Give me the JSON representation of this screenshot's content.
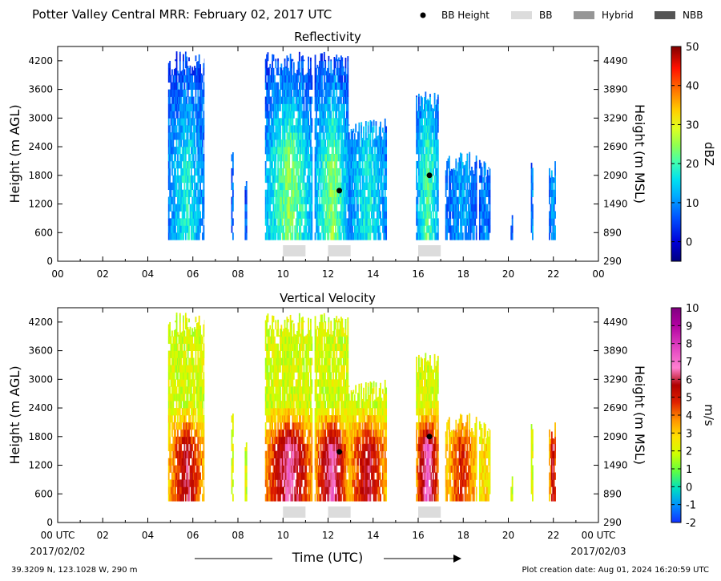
{
  "header": {
    "title": "Potter Valley Central MRR:  February 02, 2017 UTC",
    "legend": [
      {
        "label": "BB Height",
        "marker": "dot",
        "color": "#000000"
      },
      {
        "label": "BB",
        "marker": "box",
        "color": "#dcdcdc"
      },
      {
        "label": "Hybrid",
        "marker": "box",
        "color": "#969696"
      },
      {
        "label": "NBB",
        "marker": "box",
        "color": "#555555"
      }
    ]
  },
  "footer": {
    "location": "39.3209 N, 123.1028 W, 290 m",
    "creation": "Plot creation date: Aug 01, 2024 16:20:59 UTC",
    "date_start": "2017/02/02",
    "date_end": "2017/02/03",
    "time_label": "Time (UTC)"
  },
  "chart_data": [
    {
      "type": "heatmap",
      "title": "Reflectivity",
      "ylabel": "Height (m AGL)",
      "y2label": "Height (m MSL)",
      "x_ticks": [
        "00",
        "02",
        "04",
        "06",
        "08",
        "10",
        "12",
        "14",
        "16",
        "18",
        "20",
        "22",
        "00"
      ],
      "xlim": [
        0,
        24
      ],
      "ylim": [
        0,
        4500
      ],
      "y_ticks": [
        0,
        600,
        1200,
        1800,
        2400,
        3000,
        3600,
        4200
      ],
      "y2_ticks": [
        290,
        890,
        1490,
        2090,
        2690,
        3290,
        3890,
        4490
      ],
      "colorbar": {
        "label": "dBZ",
        "min": -5,
        "max": 50,
        "ticks": [
          0,
          10,
          20,
          30,
          40,
          50
        ]
      },
      "bb_height_points": [
        {
          "x": 12.5,
          "y": 1480
        },
        {
          "x": 16.5,
          "y": 1800
        }
      ],
      "bb_segments": [
        [
          10.0,
          11.0
        ],
        [
          12.0,
          13.0
        ],
        [
          16.0,
          17.0
        ]
      ],
      "precip_columns": [
        {
          "x0": 4.9,
          "x1": 6.5,
          "top": 4400,
          "core": 18
        },
        {
          "x0": 7.7,
          "x1": 7.8,
          "top": 2400,
          "core": 8
        },
        {
          "x0": 8.3,
          "x1": 8.4,
          "top": 1700,
          "core": 8
        },
        {
          "x0": 9.2,
          "x1": 11.3,
          "top": 4400,
          "core": 25
        },
        {
          "x0": 11.4,
          "x1": 12.9,
          "top": 4400,
          "core": 25
        },
        {
          "x0": 12.9,
          "x1": 14.6,
          "top": 3000,
          "core": 18
        },
        {
          "x0": 15.9,
          "x1": 16.9,
          "top": 3600,
          "core": 22
        },
        {
          "x0": 17.2,
          "x1": 18.6,
          "top": 2300,
          "core": 12
        },
        {
          "x0": 18.7,
          "x1": 19.2,
          "top": 2200,
          "core": 10
        },
        {
          "x0": 20.1,
          "x1": 20.2,
          "top": 1200,
          "core": 8
        },
        {
          "x0": 21.0,
          "x1": 21.1,
          "top": 2300,
          "core": 10
        },
        {
          "x0": 21.8,
          "x1": 22.1,
          "top": 2200,
          "core": 12
        }
      ]
    },
    {
      "type": "heatmap",
      "title": "Vertical Velocity",
      "ylabel": "Height (m AGL)",
      "y2label": "Height (m MSL)",
      "x_ticks": [
        "00 UTC",
        "02",
        "04",
        "06",
        "08",
        "10",
        "12",
        "14",
        "16",
        "18",
        "20",
        "22",
        "00 UTC"
      ],
      "xlim": [
        0,
        24
      ],
      "ylim": [
        0,
        4500
      ],
      "y_ticks": [
        0,
        600,
        1200,
        1800,
        2400,
        3000,
        3600,
        4200
      ],
      "y2_ticks": [
        290,
        890,
        1490,
        2090,
        2690,
        3290,
        3890,
        4490
      ],
      "colorbar": {
        "label": "m/s",
        "min": -2,
        "max": 10,
        "ticks": [
          -2,
          -1,
          0,
          1,
          2,
          3,
          4,
          5,
          6,
          7,
          8,
          9,
          10
        ]
      },
      "bb_height_points": [
        {
          "x": 12.5,
          "y": 1480
        },
        {
          "x": 16.5,
          "y": 1800
        }
      ],
      "bb_segments": [
        [
          10.0,
          11.0
        ],
        [
          12.0,
          13.0
        ],
        [
          16.0,
          17.0
        ]
      ],
      "precip_columns": [
        {
          "x0": 4.9,
          "x1": 6.5,
          "top": 4400,
          "core": 6
        },
        {
          "x0": 7.7,
          "x1": 7.8,
          "top": 2400,
          "core": 2
        },
        {
          "x0": 8.3,
          "x1": 8.4,
          "top": 1700,
          "core": 2
        },
        {
          "x0": 9.2,
          "x1": 11.3,
          "top": 4400,
          "core": 7
        },
        {
          "x0": 11.4,
          "x1": 12.9,
          "top": 4400,
          "core": 7
        },
        {
          "x0": 12.9,
          "x1": 14.6,
          "top": 3000,
          "core": 6
        },
        {
          "x0": 15.9,
          "x1": 16.9,
          "top": 3600,
          "core": 7.5
        },
        {
          "x0": 17.2,
          "x1": 18.6,
          "top": 2300,
          "core": 5
        },
        {
          "x0": 18.7,
          "x1": 19.2,
          "top": 2200,
          "core": 3
        },
        {
          "x0": 20.1,
          "x1": 20.2,
          "top": 1200,
          "core": 2
        },
        {
          "x0": 21.0,
          "x1": 21.1,
          "top": 2300,
          "core": 2
        },
        {
          "x0": 21.8,
          "x1": 22.1,
          "top": 2200,
          "core": 6
        }
      ]
    }
  ]
}
